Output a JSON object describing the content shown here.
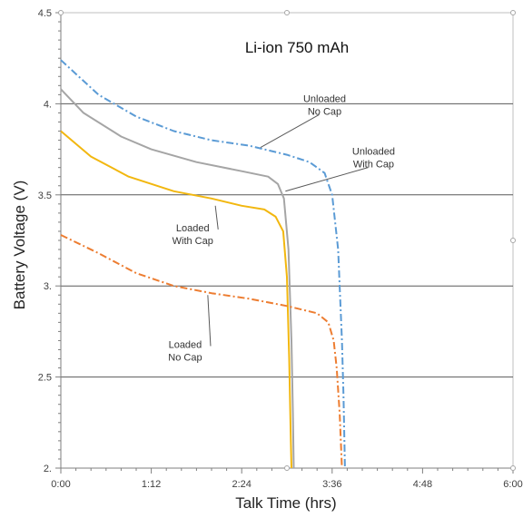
{
  "chart_data": {
    "type": "line",
    "title": "Li-ion  750 mAh",
    "xlabel": "Talk Time (hrs)",
    "ylabel": "Battery Voltage (V)",
    "xlim": [
      0,
      6
    ],
    "ylim": [
      2,
      4.5
    ],
    "x_tick_labels": [
      "0:00",
      "1:12",
      "2:24",
      "3:36",
      "4:48",
      "6:00"
    ],
    "x_tick_values": [
      0,
      1.2,
      2.4,
      3.6,
      4.8,
      6.0
    ],
    "y_tick_labels": [
      "2.",
      "2.5",
      "3.",
      "3.5",
      "4.",
      "4.5"
    ],
    "y_tick_values": [
      2,
      2.5,
      3,
      3.5,
      4,
      4.5
    ],
    "horizontal_grid": [
      2.5,
      3,
      3.5,
      4
    ],
    "series": [
      {
        "name": "Unloaded No Cap",
        "color": "#5b9bd5",
        "style": "dashdot",
        "points": [
          [
            0,
            4.24
          ],
          [
            0.5,
            4.05
          ],
          [
            1.0,
            3.93
          ],
          [
            1.5,
            3.85
          ],
          [
            2.0,
            3.8
          ],
          [
            2.5,
            3.77
          ],
          [
            3.0,
            3.72
          ],
          [
            3.3,
            3.68
          ],
          [
            3.5,
            3.62
          ],
          [
            3.6,
            3.5
          ],
          [
            3.68,
            3.2
          ],
          [
            3.73,
            2.7
          ],
          [
            3.75,
            2.4
          ],
          [
            3.77,
            2.0
          ]
        ]
      },
      {
        "name": "Unloaded With Cap",
        "color": "#a5a5a5",
        "style": "solid",
        "points": [
          [
            0,
            4.08
          ],
          [
            0.3,
            3.95
          ],
          [
            0.8,
            3.82
          ],
          [
            1.2,
            3.75
          ],
          [
            1.8,
            3.68
          ],
          [
            2.4,
            3.63
          ],
          [
            2.75,
            3.6
          ],
          [
            2.88,
            3.56
          ],
          [
            2.96,
            3.48
          ],
          [
            3.02,
            3.2
          ],
          [
            3.06,
            2.7
          ],
          [
            3.08,
            2.3
          ],
          [
            3.09,
            2.0
          ]
        ]
      },
      {
        "name": "Loaded With Cap",
        "color": "#f2b70f",
        "style": "solid",
        "points": [
          [
            0,
            3.85
          ],
          [
            0.4,
            3.71
          ],
          [
            0.9,
            3.6
          ],
          [
            1.5,
            3.52
          ],
          [
            2.0,
            3.48
          ],
          [
            2.4,
            3.44
          ],
          [
            2.7,
            3.42
          ],
          [
            2.85,
            3.38
          ],
          [
            2.95,
            3.3
          ],
          [
            3.0,
            3.05
          ],
          [
            3.03,
            2.6
          ],
          [
            3.05,
            2.2
          ],
          [
            3.06,
            2.0
          ]
        ]
      },
      {
        "name": "Loaded No Cap",
        "color": "#ed7d31",
        "style": "dashdot",
        "points": [
          [
            0,
            3.28
          ],
          [
            0.5,
            3.18
          ],
          [
            1.0,
            3.07
          ],
          [
            1.5,
            3.0
          ],
          [
            2.0,
            2.96
          ],
          [
            2.5,
            2.93
          ],
          [
            3.0,
            2.89
          ],
          [
            3.4,
            2.85
          ],
          [
            3.55,
            2.8
          ],
          [
            3.62,
            2.7
          ],
          [
            3.66,
            2.55
          ],
          [
            3.7,
            2.3
          ],
          [
            3.73,
            2.0
          ]
        ]
      }
    ],
    "annotations": [
      {
        "lines": [
          "Unloaded",
          "No Cap"
        ],
        "target": [
          2.65,
          3.76
        ],
        "label_at": [
          3.5,
          4.01
        ]
      },
      {
        "lines": [
          "Unloaded",
          "With Cap"
        ],
        "target": [
          2.98,
          3.52
        ],
        "label_at": [
          4.15,
          3.72
        ]
      },
      {
        "lines": [
          "Loaded",
          "With Cap"
        ],
        "target": [
          2.05,
          3.44
        ],
        "label_at": [
          1.75,
          3.3
        ]
      },
      {
        "lines": [
          "Loaded",
          "No Cap"
        ],
        "target": [
          1.95,
          2.95
        ],
        "label_at": [
          1.65,
          2.66
        ]
      }
    ]
  }
}
